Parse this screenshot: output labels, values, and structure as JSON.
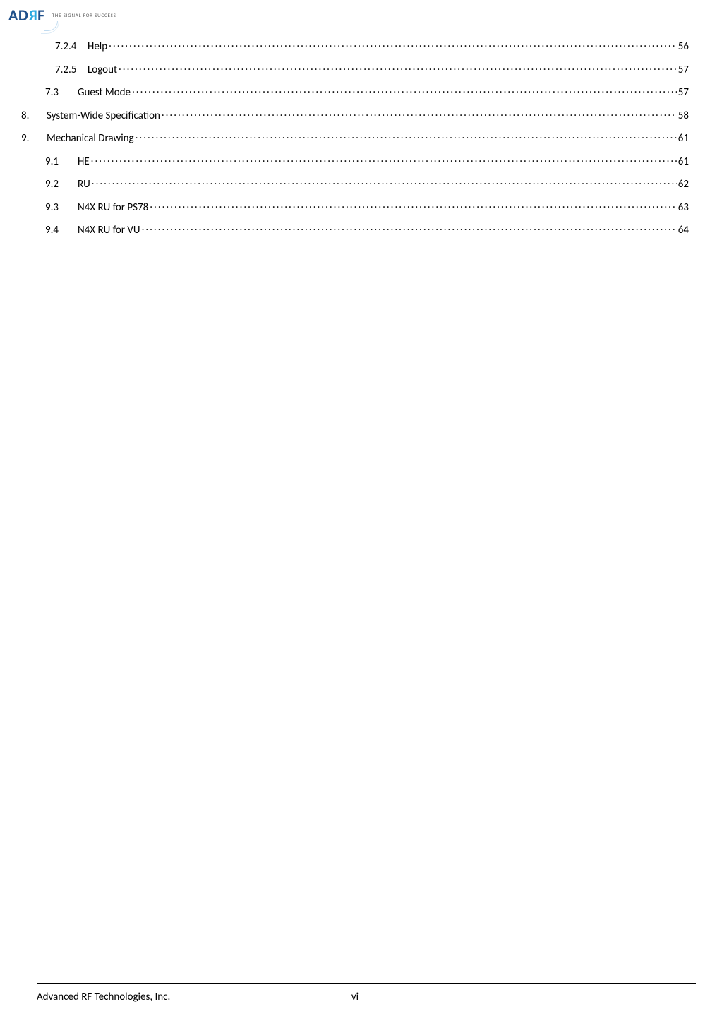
{
  "logo": {
    "letters": {
      "a": "A",
      "d": "D",
      "r": "R",
      "f": "F"
    },
    "tagline": "THE SIGNAL FOR SUCCESS"
  },
  "colors": {
    "logo_primary": "#1e4f8a",
    "logo_accent": "#2aa9e0",
    "text": "#000000",
    "background": "#ffffff",
    "rule": "#000000"
  },
  "toc": [
    {
      "indent": 2,
      "number": "7.2.4",
      "title": "Help",
      "page": "56"
    },
    {
      "indent": 2,
      "number": "7.2.5",
      "title": "Logout",
      "page": "57"
    },
    {
      "indent": 1,
      "number": "7.3",
      "title": "Guest Mode",
      "page": "57"
    },
    {
      "indent": 0,
      "number": "8.",
      "title": "System-Wide Specification",
      "page": "58"
    },
    {
      "indent": 0,
      "number": "9.",
      "title": "Mechanical Drawing",
      "page": "61"
    },
    {
      "indent": 1,
      "number": "9.1",
      "title": "HE",
      "page": "61"
    },
    {
      "indent": 1,
      "number": "9.2",
      "title": "RU",
      "page": "62"
    },
    {
      "indent": 1,
      "number": "9.3",
      "title": "N4X RU for PS78",
      "page": "63"
    },
    {
      "indent": 1,
      "number": "9.4",
      "title": "N4X RU for VU",
      "page": "64"
    }
  ],
  "footer": {
    "company": "Advanced RF Technologies, Inc.",
    "page_label": "vi"
  }
}
